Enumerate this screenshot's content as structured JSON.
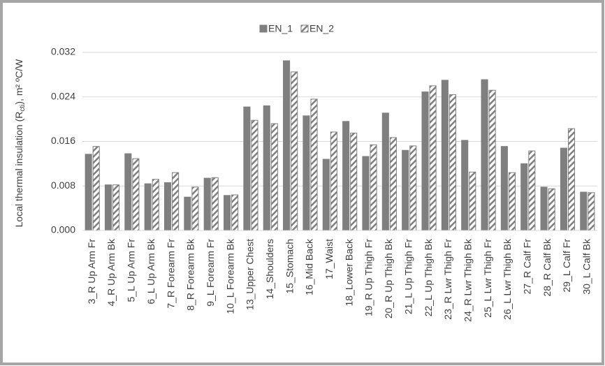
{
  "chart_data": {
    "type": "bar",
    "y_label": {
      "prefix": "Local thermal insulation (R",
      "sub": "cti",
      "suffix": "), m² ºC/W"
    },
    "categories": [
      "3_R Up Arm Fr",
      "4_R Up Arm Bk",
      "5_L Up Arm Fr",
      "6_L Up Arm Bk",
      "7_R Forearm Fr",
      "8_R Forearm Bk",
      "9_L Forearm Fr",
      "10_L Forearm Bk",
      "13_Upper Chest",
      "14_Shoulders",
      "15_Stomach",
      "16_Mid Back",
      "17_Waist",
      "18_Lower Back",
      "19_R Up Thigh Fr",
      "20_R Up Thigh Bk",
      "21_L Up Thigh Fr",
      "22_L Up Thigh Bk",
      "23_R Lwr Thigh Fr",
      "24_R Lwr Thigh Bk",
      "25_L Lwr Thigh Fr",
      "26_L Lwr Thigh Bk",
      "27_R Calf Fr",
      "28_R Calf Bk",
      "29_L Calf Fr",
      "30_L Calf Bk"
    ],
    "series": [
      {
        "name": "EN_1",
        "color": "#7f7f7f",
        "style": "solid",
        "values": [
          0.0137,
          0.0082,
          0.0138,
          0.0084,
          0.0086,
          0.006,
          0.0094,
          0.0063,
          0.0222,
          0.0224,
          0.0305,
          0.0206,
          0.0128,
          0.0196,
          0.0133,
          0.0211,
          0.0144,
          0.0249,
          0.027,
          0.0162,
          0.0271,
          0.0151,
          0.012,
          0.0078,
          0.0148,
          0.0069
        ]
      },
      {
        "name": "EN_2",
        "color": "#7f7f7f",
        "style": "hatched",
        "values": [
          0.0151,
          0.0082,
          0.0129,
          0.0092,
          0.0104,
          0.0078,
          0.0095,
          0.0064,
          0.0198,
          0.0192,
          0.0285,
          0.0236,
          0.0177,
          0.0175,
          0.0154,
          0.0167,
          0.0152,
          0.026,
          0.0244,
          0.0105,
          0.0252,
          0.0104,
          0.0143,
          0.0075,
          0.0183,
          0.0068
        ]
      }
    ],
    "ylim": [
      0,
      0.032
    ],
    "yticks": [
      {
        "value": 0,
        "label": "0.000"
      },
      {
        "value": 0.008,
        "label": "0.008"
      },
      {
        "value": 0.016,
        "label": "0.016"
      },
      {
        "value": 0.024,
        "label": "0.024"
      },
      {
        "value": 0.032,
        "label": "0.032"
      }
    ],
    "grid": true,
    "legend_position": "top"
  }
}
